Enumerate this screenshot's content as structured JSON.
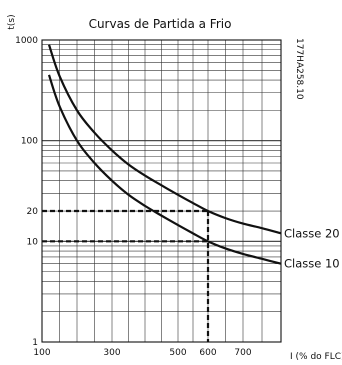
{
  "chart_data": {
    "type": "line",
    "title": "Curvas de Partida a Frio",
    "ylabel": "t(s)",
    "xlabel": "I (% do FLC)",
    "document_code": "177HA258.10",
    "x_ticks": [
      100,
      300,
      500,
      600,
      700
    ],
    "y_ticks": [
      1,
      10,
      20,
      100,
      1000
    ],
    "xlim": [
      100,
      800
    ],
    "ylim": [
      1,
      1000
    ],
    "y_scale": "log",
    "grid": true,
    "series": [
      {
        "name": "Classe 20",
        "x": [
          120,
          150,
          200,
          250,
          300,
          350,
          400,
          450,
          500,
          550,
          600,
          650,
          700,
          750,
          800
        ],
        "y": [
          900,
          440,
          200,
          120,
          80,
          58,
          45,
          36,
          29,
          24,
          20,
          17,
          15,
          13.5,
          12
        ]
      },
      {
        "name": "Classe 10",
        "x": [
          120,
          150,
          200,
          250,
          300,
          350,
          400,
          450,
          500,
          550,
          600,
          650,
          700,
          750,
          800
        ],
        "y": [
          450,
          220,
          100,
          60,
          40,
          29,
          22.5,
          18,
          14.5,
          12,
          10,
          8.5,
          7.5,
          6.7,
          6
        ]
      }
    ],
    "annotations": [
      {
        "x": 600,
        "y": 20
      },
      {
        "x": 600,
        "y": 10
      }
    ]
  }
}
